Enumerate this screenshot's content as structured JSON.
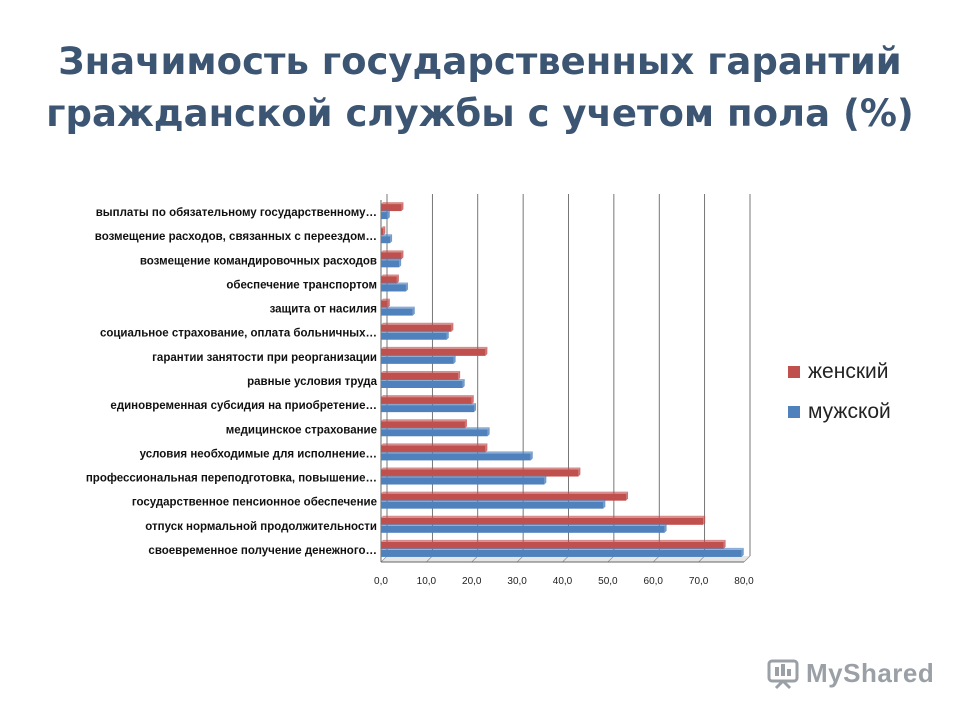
{
  "title": {
    "line1": "Значимость государственных гарантий",
    "line2": "гражданской службы с учетом пола (%)"
  },
  "chart_data": {
    "type": "bar",
    "orientation": "horizontal",
    "categories": [
      "выплаты по обязательному государственному…",
      "возмещение расходов, связанных с переездом…",
      "возмещение  командировочных расходов",
      "обеспечение транспортом",
      "защита от насилия",
      "социальное страхование, оплата больничных…",
      "гарантии занятости при реорганизации",
      "равные условия труда",
      "единовременная субсидия на приобретение…",
      "медицинское страхование",
      "условия необходимые для исполнение…",
      "профессиональная переподготовка, повышение…",
      "государственное пенсионное обеспечение",
      "отпуск нормальной продолжительности",
      "своевременное  получение денежного…"
    ],
    "series": [
      {
        "name": "женский",
        "color": "#c0504d",
        "values": [
          4.5,
          0.5,
          4.5,
          3.5,
          1.5,
          15.5,
          23.0,
          17.0,
          20.0,
          18.5,
          23.0,
          43.5,
          54.0,
          71.0,
          75.5
        ]
      },
      {
        "name": "мужской",
        "color": "#4f81bd",
        "values": [
          1.5,
          2.0,
          4.0,
          5.5,
          7.0,
          14.5,
          16.0,
          18.0,
          20.5,
          23.5,
          33.0,
          36.0,
          49.0,
          62.5,
          79.5
        ]
      }
    ],
    "xlim": [
      0,
      80
    ],
    "xticks": [
      "0,0",
      "10,0",
      "20,0",
      "30,0",
      "40,0",
      "50,0",
      "60,0",
      "70,0",
      "80,0"
    ],
    "grid": true,
    "legend_position": "right"
  },
  "watermark": {
    "text": "MyShared",
    "icon": "presentation-board-icon"
  }
}
